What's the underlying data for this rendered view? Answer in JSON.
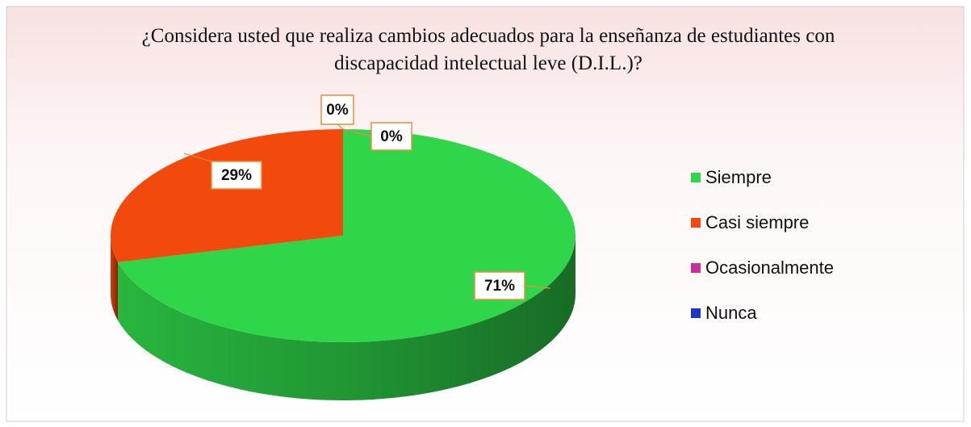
{
  "chart_data": {
    "type": "pie",
    "title": "¿Considera usted que realiza cambios adecuados para la enseñanza de estudiantes con discapacidad intelectual leve (D.I.L.)?",
    "categories": [
      "Siempre",
      "Casi siempre",
      "Ocasionalmente",
      "Nunca"
    ],
    "values": [
      71,
      29,
      0,
      0
    ],
    "value_labels": [
      "71%",
      "29%",
      "0%",
      "0%"
    ],
    "colors": [
      "#2fd64a",
      "#f24a0c",
      "#c8309e",
      "#2233c8"
    ],
    "legend": "right"
  }
}
